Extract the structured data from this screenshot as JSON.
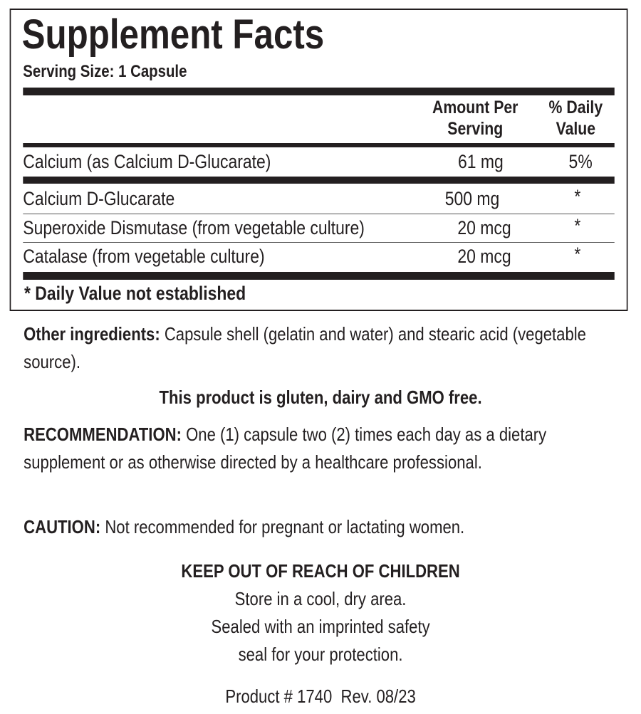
{
  "facts": {
    "title": "Supplement Facts",
    "serving_size": "Serving Size: 1 Capsule",
    "headers": {
      "amount_line1": "Amount Per",
      "amount_line2": "Serving",
      "dv_line1": "% Daily",
      "dv_line2": "Value"
    },
    "rows": [
      {
        "name": "Calcium (as Calcium D-Glucarate)",
        "amount": "61 mg",
        "dv": "5%"
      },
      {
        "name": "Calcium D-Glucarate",
        "amount": "500 mg",
        "dv": "*"
      },
      {
        "name": "Superoxide Dismutase (from vegetable culture)",
        "amount": "20 mcg",
        "dv": "*"
      },
      {
        "name": "Catalase (from vegetable culture)",
        "amount": "20 mcg",
        "dv": "*"
      }
    ],
    "footnote": "* Daily Value not established"
  },
  "other": {
    "label": "Other ingredients:",
    "text": " Capsule shell (gelatin and water) and stearic acid (vegetable source)."
  },
  "free_statement": "This product is gluten, dairy and GMO free.",
  "recommendation": {
    "label": "RECOMMENDATION:",
    "text": " One (1) capsule two (2) times each day as a dietary supplement or as otherwise directed by a healthcare professional."
  },
  "caution": {
    "label": "CAUTION:",
    "text": " Not recommended for pregnant or lactating women."
  },
  "storage": {
    "heading": "KEEP OUT OF REACH OF CHILDREN",
    "line1": "Store in a cool, dry area.",
    "line2": "Sealed with an imprinted safety",
    "line3": "seal for your protection."
  },
  "product": "Product # 1740  Rev. 08/23"
}
